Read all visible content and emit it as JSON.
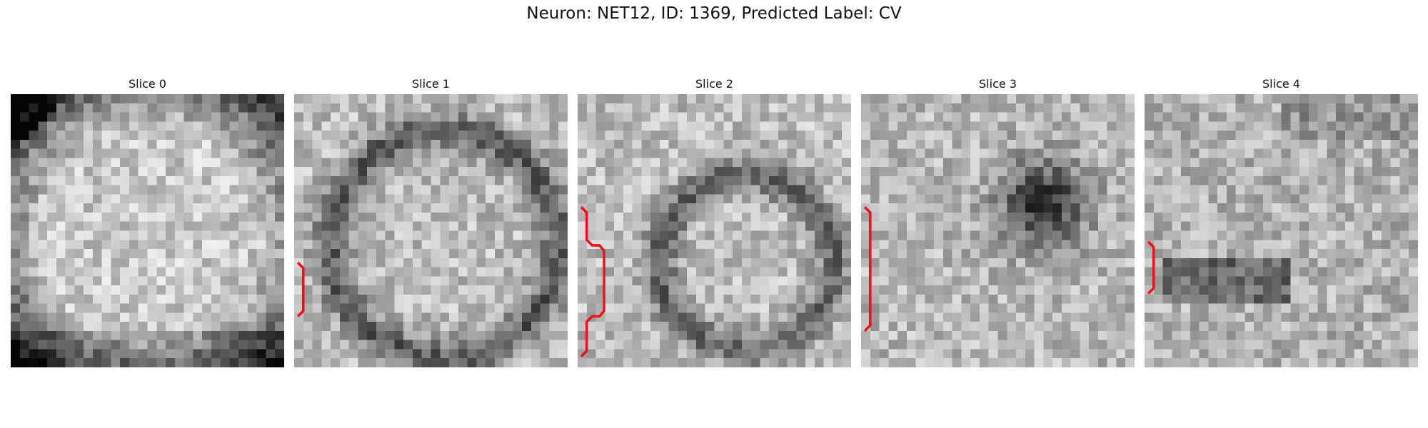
{
  "figure": {
    "title": "Neuron: NET12, ID: 1369, Predicted Label: CV"
  },
  "slices": [
    {
      "title": "Slice 0",
      "seed": 11,
      "pattern": "bright-disk",
      "overlay_color": "#e8141c"
    },
    {
      "title": "Slice 1",
      "seed": 23,
      "pattern": "ring",
      "overlay_color": "#e8141c"
    },
    {
      "title": "Slice 2",
      "seed": 37,
      "pattern": "ring-right",
      "overlay_color": "#e8141c"
    },
    {
      "title": "Slice 3",
      "seed": 53,
      "pattern": "dark-blob",
      "overlay_color": "#e8141c"
    },
    {
      "title": "Slice 4",
      "seed": 71,
      "pattern": "dark-band",
      "overlay_color": "#e8141c"
    }
  ]
}
